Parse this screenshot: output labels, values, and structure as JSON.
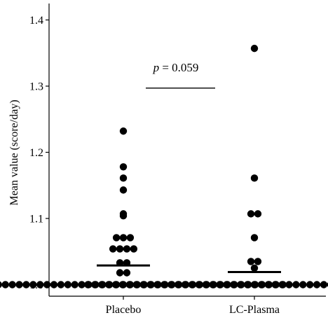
{
  "chart_data": {
    "type": "scatter",
    "subtype": "dot-strip plot with group means",
    "title": "",
    "xlabel": "",
    "ylabel": "Mean value (score/day)",
    "categories": [
      "Placebo",
      "LC-Plasma"
    ],
    "ylim": [
      0.985,
      1.41
    ],
    "yticks": [
      "1.0",
      "1.1",
      "1.2",
      "1.3",
      "1.4"
    ],
    "grid": false,
    "legend": "none",
    "series": [
      {
        "category": "Placebo",
        "mean": 1.029,
        "points": [
          1.0,
          1.0,
          1.0,
          1.0,
          1.0,
          1.0,
          1.0,
          1.0,
          1.0,
          1.0,
          1.0,
          1.0,
          1.0,
          1.0,
          1.0,
          1.0,
          1.0,
          1.0,
          1.0,
          1.0,
          1.0,
          1.0,
          1.0,
          1.0,
          1.0,
          1.0,
          1.0,
          1.0,
          1.0,
          1.0,
          1.0,
          1.0,
          1.0,
          1.0,
          1.0,
          1.0,
          1.0,
          1.0,
          1.0,
          1.0,
          1.0,
          1.0,
          1.0,
          1.0,
          1.0,
          1.0,
          1.0,
          1.018,
          1.018,
          1.033,
          1.033,
          1.054,
          1.054,
          1.054,
          1.054,
          1.071,
          1.071,
          1.071,
          1.104,
          1.107,
          1.143,
          1.161,
          1.178,
          1.232
        ]
      },
      {
        "category": "LC-Plasma",
        "mean": 1.019,
        "points": [
          1.0,
          1.0,
          1.0,
          1.0,
          1.0,
          1.0,
          1.0,
          1.0,
          1.0,
          1.0,
          1.0,
          1.0,
          1.0,
          1.0,
          1.0,
          1.0,
          1.0,
          1.0,
          1.0,
          1.0,
          1.0,
          1.0,
          1.0,
          1.0,
          1.0,
          1.0,
          1.0,
          1.0,
          1.0,
          1.0,
          1.0,
          1.0,
          1.0,
          1.0,
          1.0,
          1.0,
          1.0,
          1.0,
          1.0,
          1.0,
          1.0,
          1.0,
          1.0,
          1.0,
          1.0,
          1.0,
          1.0,
          1.0,
          1.0,
          1.025,
          1.035,
          1.035,
          1.071,
          1.107,
          1.107,
          1.161,
          1.357
        ]
      }
    ],
    "annotation": {
      "p_label": "p",
      "value_text": " = 0.059",
      "y": 1.297
    },
    "colors": {
      "points": "#000000",
      "axes": "#000000",
      "background": "#ffffff"
    }
  }
}
